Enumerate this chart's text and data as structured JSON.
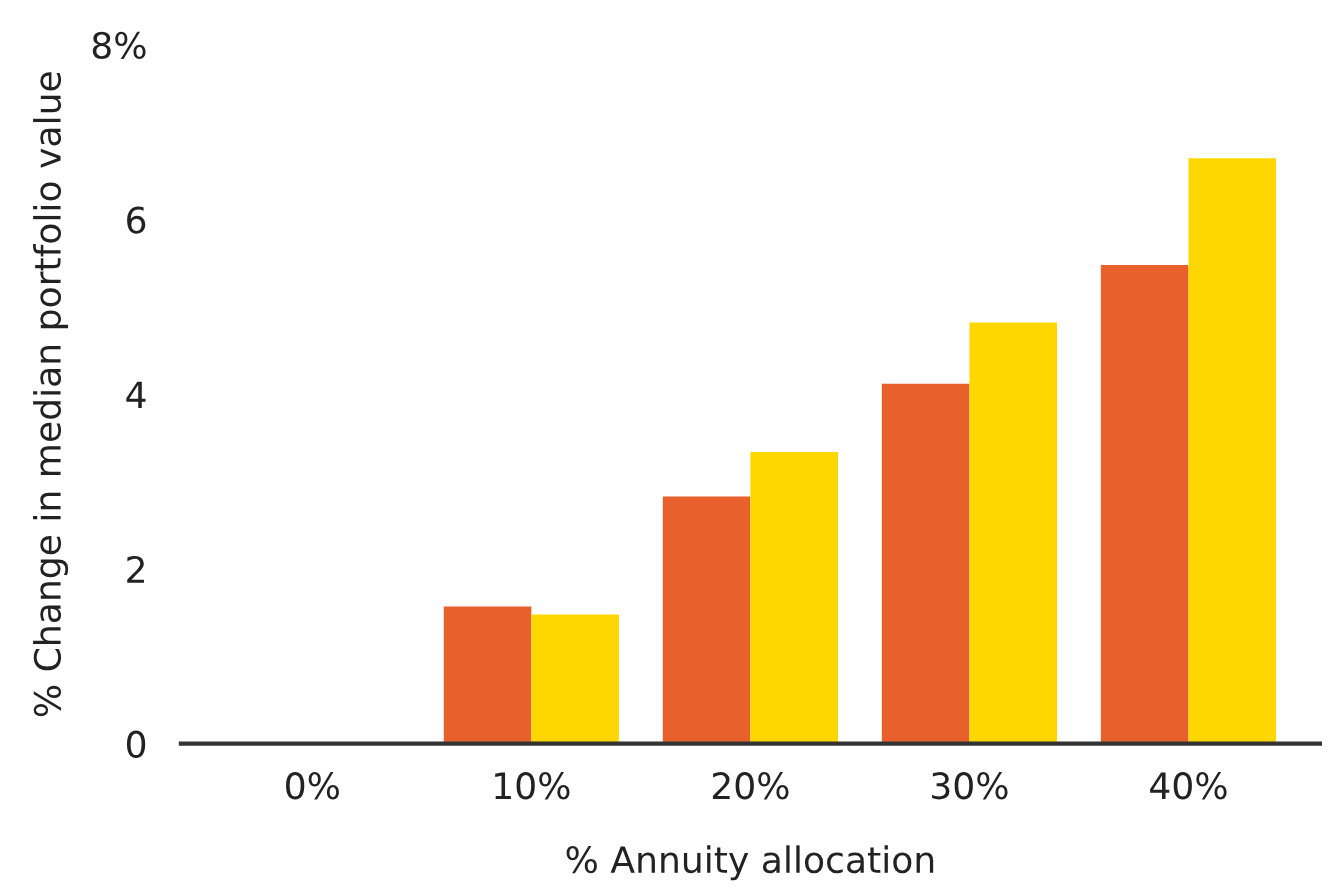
{
  "chart_data": {
    "type": "bar",
    "xlabel": "% Annuity allocation",
    "ylabel": "% Change in median portfolio value",
    "categories": [
      "0%",
      "10%",
      "20%",
      "30%",
      "40%"
    ],
    "series": [
      {
        "color": "#e8612c",
        "values": [
          0,
          1.57,
          2.83,
          4.12,
          5.48
        ]
      },
      {
        "color": "#ffd700",
        "values": [
          0,
          1.48,
          3.34,
          4.82,
          6.7
        ]
      }
    ],
    "ylim": [
      0,
      8
    ],
    "yticks": [
      0,
      2,
      4,
      6,
      {
        "value": 8,
        "label": "8%"
      }
    ],
    "grid": false,
    "legend": false
  }
}
